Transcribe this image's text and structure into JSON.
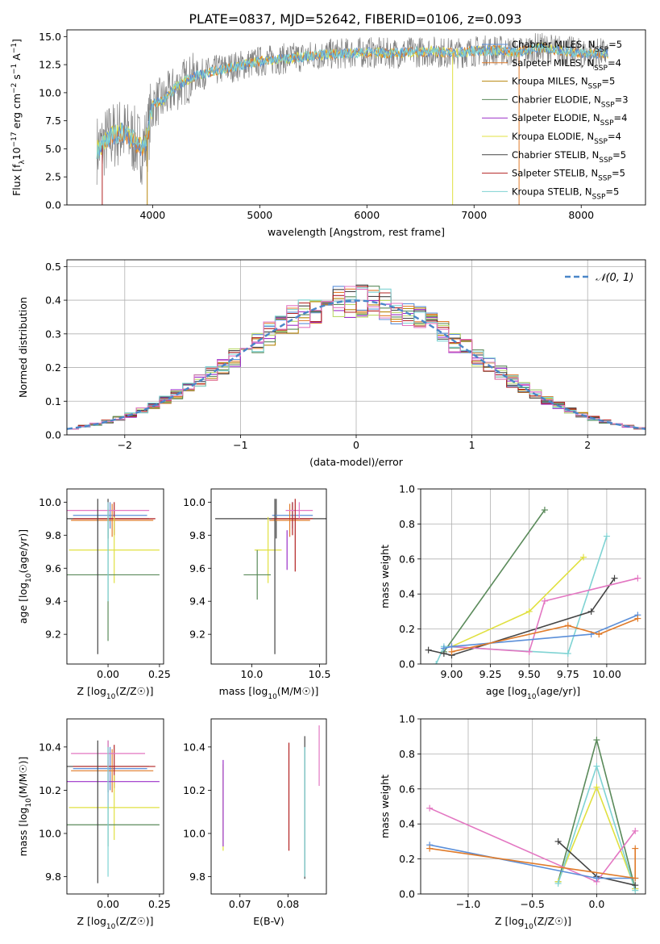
{
  "figure": {
    "title": "PLATE=0837, MJD=52642, FIBERID=0106, z=0.093"
  },
  "colors": {
    "chabrier_miles": "#5b8fd9",
    "salpeter_miles": "#e07b2a",
    "kroupa_miles": "#b8860b",
    "chabrier_elodie": "#5a8a5a",
    "salpeter_elodie": "#9b30c8",
    "kroupa_elodie": "#e0e040",
    "chabrier_stelib": "#444444",
    "salpeter_stelib": "#b22222",
    "kroupa_stelib": "#7fd3d3",
    "pink": "#e377c2",
    "lightgreen": "#bcd96b",
    "gaussian": "#4a86c8",
    "grid": "#b0b0b0"
  },
  "chart_data": [
    {
      "id": "spectrum",
      "type": "line",
      "xlabel": "wavelength [Angstrom, rest frame]",
      "ylabel": "Flux [f_λ10^-17 erg cm^-2 s^-1 A^-1]",
      "xlim": [
        3200,
        8600
      ],
      "ylim": [
        0,
        15.6
      ],
      "xticks": [
        4000,
        5000,
        6000,
        7000,
        8000
      ],
      "yticks": [
        0.0,
        2.5,
        5.0,
        7.5,
        10.0,
        12.5,
        15.0
      ],
      "data_continuum": {
        "x": [
          3500,
          3600,
          3700,
          3800,
          3900,
          3950,
          4000,
          4100,
          4200,
          4300,
          4400,
          4600,
          4800,
          5000,
          5200,
          5400,
          5600,
          5800,
          6000,
          6200,
          6400,
          6600,
          6800,
          7000,
          7200,
          7400,
          7600,
          7800,
          8000,
          8200
        ],
        "y": [
          5.0,
          6.0,
          6.5,
          6.0,
          5.0,
          6.0,
          9.0,
          9.3,
          10.3,
          11.0,
          11.5,
          12.0,
          12.4,
          12.8,
          13.0,
          13.2,
          13.4,
          13.5,
          13.6,
          13.5,
          13.6,
          13.7,
          13.5,
          13.7,
          13.8,
          13.6,
          14.0,
          13.8,
          13.5,
          13.5
        ]
      },
      "legend": [
        {
          "label": "Chabrier MILES, N_SSP=5",
          "color_key": "chabrier_miles"
        },
        {
          "label": "Salpeter MILES, N_SSP=4",
          "color_key": "salpeter_miles"
        },
        {
          "label": "Kroupa MILES, N_SSP=5",
          "color_key": "kroupa_miles"
        },
        {
          "label": "Chabrier ELODIE, N_SSP=3",
          "color_key": "chabrier_elodie"
        },
        {
          "label": "Salpeter ELODIE, N_SSP=4",
          "color_key": "salpeter_elodie"
        },
        {
          "label": "Kroupa ELODIE, N_SSP=4",
          "color_key": "kroupa_elodie"
        },
        {
          "label": "Chabrier STELIB, N_SSP=5",
          "color_key": "chabrier_stelib"
        },
        {
          "label": "Salpeter STELIB, N_SSP=5",
          "color_key": "salpeter_stelib"
        },
        {
          "label": "Kroupa STELIB, N_SSP=5",
          "color_key": "kroupa_stelib"
        }
      ]
    },
    {
      "id": "residuals",
      "type": "line",
      "xlabel": "(data-model)/error",
      "ylabel": "Normed distribution",
      "xlim": [
        -2.5,
        2.5
      ],
      "ylim": [
        0,
        0.52
      ],
      "xticks": [
        -2,
        -1,
        0,
        1,
        2
      ],
      "yticks": [
        0.0,
        0.1,
        0.2,
        0.3,
        0.4,
        0.5
      ],
      "grid": true,
      "legend": [
        {
          "label": "𝒩(0, 1)",
          "color_key": "gaussian"
        }
      ],
      "bin_width": 0.1
    },
    {
      "id": "z_age",
      "type": "scatter",
      "xlabel": "Z [log10(Z/Z☉)]",
      "ylabel": "age  [log10(age/yr)]",
      "xlim": [
        -0.2,
        0.27
      ],
      "ylim": [
        9.02,
        10.08
      ],
      "xticks": [
        0.0,
        0.25
      ],
      "yticks": [
        9.2,
        9.4,
        9.6,
        9.8,
        10.0
      ],
      "points": [
        {
          "x": 0.0,
          "xerr": 0.2,
          "y": 9.9,
          "yerr": 0.12,
          "color_key": "chabrier_stelib"
        },
        {
          "x": 0.01,
          "xerr": 0.18,
          "y": 9.92,
          "yerr": 0.08,
          "color_key": "chabrier_miles"
        },
        {
          "x": 0.02,
          "xerr": 0.2,
          "y": 9.89,
          "yerr": 0.1,
          "color_key": "salpeter_miles"
        },
        {
          "x": 0.03,
          "xerr": 0.2,
          "y": 9.9,
          "yerr": 0.1,
          "color_key": "salpeter_stelib"
        },
        {
          "x": 0.0,
          "xerr": 0.2,
          "y": 9.95,
          "yerr": 0.05,
          "color_key": "pink"
        },
        {
          "x": 0.03,
          "xerr": 0.22,
          "y": 9.71,
          "yerr": 0.2,
          "color_key": "kroupa_elodie"
        },
        {
          "x": 0.0,
          "xerr": 0.25,
          "y": 9.56,
          "yerr": 0.4,
          "color_key": "chabrier_elodie"
        },
        {
          "x": -0.05,
          "xerr": 0.0,
          "y": 9.55,
          "yerr": 0.47,
          "color_key": "chabrier_stelib"
        },
        {
          "x": 0.0,
          "xerr": 0.0,
          "y": 9.7,
          "yerr": 0.3,
          "color_key": "kroupa_stelib"
        }
      ]
    },
    {
      "id": "mass_age",
      "type": "scatter",
      "xlabel": "mass [log10(M/M☉)]",
      "ylabel": "",
      "xlim": [
        9.7,
        10.55
      ],
      "ylim": [
        9.02,
        10.08
      ],
      "xticks": [
        10.0,
        10.5
      ],
      "yticks": [
        9.2,
        9.4,
        9.6,
        9.8,
        10.0
      ],
      "points": [
        {
          "x": 10.18,
          "xerr": 0.45,
          "y": 9.9,
          "yerr": 0.12,
          "color_key": "chabrier_stelib"
        },
        {
          "x": 10.3,
          "xerr": 0.15,
          "y": 9.92,
          "yerr": 0.08,
          "color_key": "chabrier_miles"
        },
        {
          "x": 10.28,
          "xerr": 0.15,
          "y": 9.89,
          "yerr": 0.1,
          "color_key": "salpeter_miles"
        },
        {
          "x": 10.3,
          "xerr": 0.15,
          "y": 9.9,
          "yerr": 0.1,
          "color_key": "salpeter_stelib"
        },
        {
          "x": 10.35,
          "xerr": 0.1,
          "y": 9.95,
          "yerr": 0.05,
          "color_key": "pink"
        },
        {
          "x": 10.12,
          "xerr": 0.1,
          "y": 9.71,
          "yerr": 0.2,
          "color_key": "kroupa_elodie"
        },
        {
          "x": 10.04,
          "xerr": 0.1,
          "y": 9.56,
          "yerr": 0.15,
          "color_key": "chabrier_elodie"
        },
        {
          "x": 10.17,
          "xerr": 0.0,
          "y": 9.55,
          "yerr": 0.47,
          "color_key": "chabrier_stelib"
        },
        {
          "x": 10.26,
          "xerr": 0.0,
          "y": 9.71,
          "yerr": 0.12,
          "color_key": "salpeter_elodie"
        },
        {
          "x": 10.32,
          "xerr": 0.0,
          "y": 9.8,
          "yerr": 0.22,
          "color_key": "salpeter_stelib"
        }
      ]
    },
    {
      "id": "weight_age",
      "type": "line",
      "xlabel": "age  [log10(age/yr)]",
      "ylabel": "mass weight",
      "xlim": [
        8.8,
        10.25
      ],
      "ylim": [
        0,
        1.0
      ],
      "xticks": [
        9.0,
        9.25,
        9.5,
        9.75,
        10.0
      ],
      "yticks": [
        0.0,
        0.2,
        0.4,
        0.6,
        0.8,
        1.0
      ],
      "grid": true,
      "series": [
        {
          "color_key": "chabrier_elodie",
          "x": [
            8.95,
            9.6
          ],
          "y": [
            0.07,
            0.88
          ]
        },
        {
          "color_key": "kroupa_elodie",
          "x": [
            9.0,
            9.5,
            9.85
          ],
          "y": [
            0.1,
            0.3,
            0.61
          ]
        },
        {
          "color_key": "kroupa_stelib",
          "x": [
            8.9,
            8.95,
            9.75,
            10.0
          ],
          "y": [
            0.0,
            0.1,
            0.06,
            0.73
          ]
        },
        {
          "color_key": "chabrier_stelib",
          "x": [
            8.85,
            8.95,
            9.0,
            9.9,
            10.05
          ],
          "y": [
            0.08,
            0.06,
            0.05,
            0.3,
            0.49
          ]
        },
        {
          "color_key": "pink",
          "x": [
            9.0,
            9.5,
            9.6,
            10.2
          ],
          "y": [
            0.1,
            0.07,
            0.36,
            0.49
          ]
        },
        {
          "color_key": "chabrier_miles",
          "x": [
            8.95,
            9.0,
            9.9,
            10.2
          ],
          "y": [
            0.09,
            0.1,
            0.17,
            0.28
          ]
        },
        {
          "color_key": "salpeter_miles",
          "x": [
            9.0,
            9.75,
            9.95,
            10.2
          ],
          "y": [
            0.07,
            0.22,
            0.17,
            0.26
          ]
        }
      ]
    },
    {
      "id": "z_mass",
      "type": "scatter",
      "xlabel": "Z [log10(Z/Z☉)]",
      "ylabel": "mass [log10(M/M☉)]",
      "xlim": [
        -0.2,
        0.27
      ],
      "ylim": [
        9.72,
        10.53
      ],
      "xticks": [
        0.0,
        0.25
      ],
      "yticks": [
        9.8,
        10.0,
        10.2,
        10.4
      ],
      "points": [
        {
          "x": 0.0,
          "xerr": 0.2,
          "y": 10.31,
          "yerr": 0.12,
          "color_key": "chabrier_stelib"
        },
        {
          "x": 0.01,
          "xerr": 0.18,
          "y": 10.3,
          "yerr": 0.1,
          "color_key": "chabrier_miles"
        },
        {
          "x": 0.02,
          "xerr": 0.2,
          "y": 10.29,
          "yerr": 0.1,
          "color_key": "salpeter_miles"
        },
        {
          "x": 0.03,
          "xerr": 0.2,
          "y": 10.31,
          "yerr": 0.1,
          "color_key": "salpeter_stelib"
        },
        {
          "x": 0.0,
          "xerr": 0.18,
          "y": 10.37,
          "yerr": 0.06,
          "color_key": "pink"
        },
        {
          "x": 0.03,
          "xerr": 0.22,
          "y": 10.12,
          "yerr": 0.15,
          "color_key": "kroupa_elodie"
        },
        {
          "x": 0.0,
          "xerr": 0.25,
          "y": 10.04,
          "yerr": 0.1,
          "color_key": "chabrier_elodie"
        },
        {
          "x": 0.0,
          "xerr": 0.25,
          "y": 10.24,
          "yerr": 0.1,
          "color_key": "salpeter_elodie"
        },
        {
          "x": -0.05,
          "xerr": 0.0,
          "y": 10.1,
          "yerr": 0.33,
          "color_key": "chabrier_stelib"
        },
        {
          "x": 0.0,
          "xerr": 0.0,
          "y": 10.1,
          "yerr": 0.3,
          "color_key": "kroupa_stelib"
        }
      ]
    },
    {
      "id": "ebv_mass",
      "type": "scatter",
      "xlabel": "E(B-V)",
      "ylabel": "",
      "xlim": [
        0.064,
        0.088
      ],
      "ylim": [
        9.72,
        10.53
      ],
      "xticks": [
        0.07,
        0.08
      ],
      "yticks": [
        9.8,
        10.0,
        10.2,
        10.4
      ],
      "points": [
        {
          "x": 0.0665,
          "y": 10.12,
          "yerr": 0.2,
          "color_key": "kroupa_elodie"
        },
        {
          "x": 0.0665,
          "y": 10.14,
          "yerr": 0.2,
          "color_key": "salpeter_elodie"
        },
        {
          "x": 0.0802,
          "y": 10.17,
          "yerr": 0.25,
          "color_key": "salpeter_stelib"
        },
        {
          "x": 0.0835,
          "y": 10.12,
          "yerr": 0.33,
          "color_key": "chabrier_stelib"
        },
        {
          "x": 0.0835,
          "y": 10.1,
          "yerr": 0.3,
          "color_key": "kroupa_stelib"
        },
        {
          "x": 0.0865,
          "y": 10.36,
          "yerr": 0.14,
          "color_key": "pink"
        }
      ]
    },
    {
      "id": "weight_z",
      "type": "line",
      "xlabel": "Z [log10(Z/Z☉)]",
      "ylabel": "mass weight",
      "xlim": [
        -1.37,
        0.38
      ],
      "ylim": [
        0,
        1.0
      ],
      "xticks": [
        -1.0,
        -0.5,
        0.0
      ],
      "yticks": [
        0.0,
        0.2,
        0.4,
        0.6,
        0.8,
        1.0
      ],
      "grid": true,
      "series": [
        {
          "color_key": "chabrier_elodie",
          "x": [
            -0.3,
            0.0,
            0.3
          ],
          "y": [
            0.07,
            0.88,
            0.03
          ]
        },
        {
          "color_key": "kroupa_elodie",
          "x": [
            -0.3,
            0.0,
            0.3
          ],
          "y": [
            0.07,
            0.61,
            0.03
          ]
        },
        {
          "color_key": "kroupa_stelib",
          "x": [
            -0.3,
            0.0,
            0.3
          ],
          "y": [
            0.06,
            0.73,
            0.02
          ]
        },
        {
          "color_key": "chabrier_stelib",
          "x": [
            -0.3,
            0.0,
            0.3
          ],
          "y": [
            0.3,
            0.1,
            0.05
          ]
        },
        {
          "color_key": "pink",
          "x": [
            -1.3,
            0.0,
            0.3
          ],
          "y": [
            0.49,
            0.07,
            0.36
          ]
        },
        {
          "color_key": "chabrier_miles",
          "x": [
            -1.3,
            0.0,
            0.3
          ],
          "y": [
            0.28,
            0.09,
            0.09
          ]
        },
        {
          "color_key": "salpeter_miles",
          "x": [
            -1.3,
            0.3,
            0.3
          ],
          "y": [
            0.26,
            0.09,
            0.26
          ]
        }
      ]
    }
  ]
}
